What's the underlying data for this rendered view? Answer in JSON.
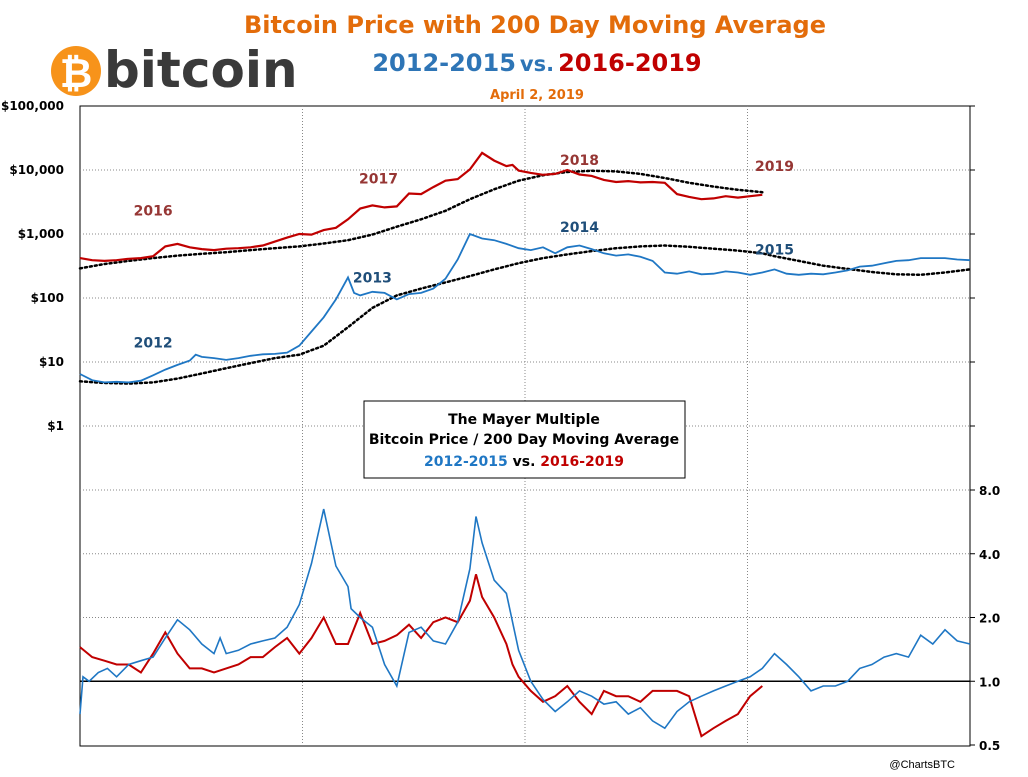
{
  "logo": {
    "symbol": "₿",
    "text": "bitcoin",
    "color": "#f7931a"
  },
  "header": {
    "title": "Bitcoin Price with 200 Day Moving Average",
    "sub_a": "2012-2015",
    "sub_vs": "vs.",
    "sub_b": "2016-2019",
    "date": "April 2, 2019"
  },
  "colors": {
    "series_a": "#1f77c4",
    "series_b": "#c00000",
    "label_a": "#1f4e79",
    "label_b": "#963634",
    "title": "#e36c0a"
  },
  "box": {
    "line1": "The Mayer Multiple",
    "line2": "Bitcoin Price  / 200 Day Moving Average",
    "line3a": "2012-2015",
    "line3vs": " vs. ",
    "line3b": "2016-2019"
  },
  "credit": "@ChartsBTC",
  "chart_data": [
    {
      "type": "line",
      "title": "Bitcoin Price with 200 Day Moving Average",
      "yscale": "log",
      "ylim": [
        1,
        100000
      ],
      "yticks": [
        "$1",
        "$10",
        "$100",
        "$1,000",
        "$10,000",
        "$100,000"
      ],
      "x_range_days": [
        0,
        1461
      ],
      "grid": true,
      "year_labels": {
        "series_a": [
          {
            "label": "2012",
            "x": 120,
            "y": 17
          },
          {
            "label": "2013",
            "x": 480,
            "y": 175
          },
          {
            "label": "2014",
            "x": 820,
            "y": 1080
          },
          {
            "label": "2015",
            "x": 1140,
            "y": 480
          }
        ],
        "series_b": [
          {
            "label": "2016",
            "x": 120,
            "y": 1960
          },
          {
            "label": "2017",
            "x": 490,
            "y": 6100
          },
          {
            "label": "2018",
            "x": 820,
            "y": 12000
          },
          {
            "label": "2019",
            "x": 1140,
            "y": 9600
          }
        ]
      },
      "series": [
        {
          "x": [
            0,
            20,
            40,
            60,
            80,
            100,
            120,
            140,
            160,
            180,
            190,
            200,
            220,
            240,
            260,
            280,
            300,
            320,
            340,
            360,
            380,
            400,
            420,
            440,
            450,
            460,
            480,
            500,
            520,
            540,
            560,
            580,
            600,
            620,
            640,
            660,
            680,
            700,
            720,
            740,
            760,
            780,
            800,
            820,
            840,
            860,
            880,
            900,
            920,
            940,
            960,
            980,
            1000,
            1020,
            1040,
            1060,
            1080,
            1100,
            1120,
            1140,
            1160,
            1180,
            1200,
            1220,
            1240,
            1260,
            1280,
            1300,
            1320,
            1340,
            1360,
            1380,
            1400,
            1420,
            1440,
            1461
          ],
          "y": [
            6.5,
            5.2,
            4.8,
            4.9,
            4.8,
            5.1,
            6.2,
            7.6,
            9.0,
            10.5,
            13,
            12,
            11.5,
            10.8,
            11.5,
            12.5,
            13.2,
            13.4,
            14,
            18,
            30,
            50,
            95,
            210,
            120,
            110,
            125,
            120,
            95,
            115,
            120,
            140,
            200,
            400,
            1000,
            850,
            800,
            700,
            600,
            560,
            620,
            500,
            620,
            660,
            580,
            500,
            460,
            480,
            440,
            380,
            250,
            240,
            260,
            235,
            240,
            260,
            250,
            230,
            250,
            280,
            240,
            230,
            240,
            235,
            250,
            270,
            310,
            320,
            350,
            380,
            390,
            420,
            420,
            420,
            400,
            390
          ]
        },
        {
          "x": [
            0,
            40,
            80,
            120,
            160,
            200,
            240,
            280,
            320,
            360,
            400,
            440,
            480,
            520,
            560,
            600,
            640,
            680,
            720,
            760,
            800,
            840,
            880,
            920,
            960,
            1000,
            1040,
            1080,
            1120,
            1140,
            1180,
            1220,
            1260,
            1300,
            1340,
            1380,
            1420,
            1461
          ],
          "y": [
            5.0,
            4.7,
            4.6,
            4.8,
            5.5,
            6.6,
            8.0,
            9.6,
            11.5,
            13,
            18,
            35,
            70,
            110,
            140,
            175,
            220,
            280,
            350,
            420,
            480,
            540,
            600,
            640,
            660,
            630,
            590,
            550,
            500,
            450,
            380,
            320,
            285,
            255,
            235,
            230,
            250,
            280
          ]
        },
        {
          "x": [
            0,
            20,
            40,
            60,
            80,
            100,
            120,
            140,
            160,
            180,
            200,
            220,
            240,
            260,
            280,
            300,
            320,
            340,
            360,
            380,
            400,
            420,
            440,
            460,
            480,
            500,
            520,
            540,
            560,
            580,
            600,
            620,
            640,
            660,
            680,
            700,
            710,
            720,
            740,
            760,
            780,
            800,
            820,
            840,
            860,
            880,
            900,
            920,
            940,
            960,
            980,
            1000,
            1020,
            1040,
            1060,
            1080,
            1100,
            1120
          ],
          "y": [
            420,
            390,
            380,
            390,
            410,
            420,
            450,
            640,
            700,
            620,
            580,
            560,
            590,
            600,
            620,
            660,
            760,
            880,
            1000,
            980,
            1150,
            1250,
            1700,
            2500,
            2800,
            2600,
            2700,
            4300,
            4200,
            5400,
            6800,
            7200,
            10200,
            18500,
            14000,
            11500,
            12000,
            9800,
            9000,
            8400,
            8700,
            10000,
            8500,
            8100,
            7000,
            6500,
            6700,
            6400,
            6500,
            6300,
            4200,
            3800,
            3500,
            3600,
            3900,
            3700,
            3900,
            4100
          ]
        },
        {
          "x": [
            0,
            40,
            80,
            120,
            160,
            200,
            240,
            280,
            320,
            360,
            400,
            440,
            480,
            520,
            560,
            600,
            640,
            680,
            720,
            760,
            800,
            840,
            880,
            920,
            960,
            1000,
            1040,
            1080,
            1120
          ],
          "y": [
            290,
            340,
            380,
            420,
            460,
            490,
            520,
            560,
            600,
            640,
            710,
            800,
            980,
            1300,
            1700,
            2300,
            3500,
            5000,
            6800,
            8300,
            9300,
            9700,
            9500,
            8700,
            7500,
            6300,
            5500,
            4900,
            4500
          ]
        }
      ]
    },
    {
      "type": "line",
      "title": "The Mayer Multiple",
      "subtitle": "Bitcoin Price  / 200 Day Moving Average",
      "yscale": "log",
      "ylim": [
        0.5,
        8
      ],
      "yticks": [
        "0.5",
        "1.0",
        "2.0",
        "4.0",
        "8.0"
      ],
      "reference_line": 1.0,
      "x_range_days": [
        0,
        1461
      ],
      "grid": true,
      "series": [
        {
          "name": "2012-2015",
          "x": [
            0,
            5,
            15,
            30,
            45,
            60,
            80,
            100,
            120,
            140,
            160,
            180,
            200,
            220,
            230,
            240,
            260,
            280,
            300,
            320,
            340,
            360,
            380,
            400,
            420,
            440,
            445,
            460,
            480,
            500,
            520,
            540,
            560,
            580,
            600,
            620,
            640,
            650,
            660,
            680,
            700,
            720,
            740,
            760,
            780,
            800,
            820,
            840,
            860,
            880,
            900,
            920,
            940,
            960,
            980,
            1000,
            1020,
            1040,
            1060,
            1080,
            1100,
            1120,
            1140,
            1160,
            1180,
            1200,
            1220,
            1240,
            1260,
            1280,
            1300,
            1320,
            1340,
            1360,
            1380,
            1400,
            1420,
            1440,
            1461
          ],
          "y": [
            0.7,
            1.05,
            1.0,
            1.1,
            1.15,
            1.05,
            1.2,
            1.25,
            1.3,
            1.6,
            1.95,
            1.75,
            1.5,
            1.35,
            1.6,
            1.35,
            1.4,
            1.5,
            1.55,
            1.6,
            1.8,
            2.3,
            3.6,
            6.5,
            3.5,
            2.8,
            2.2,
            2.0,
            1.8,
            1.2,
            0.95,
            1.7,
            1.8,
            1.55,
            1.5,
            1.9,
            3.4,
            6.0,
            4.5,
            3.0,
            2.6,
            1.4,
            1.0,
            0.82,
            0.72,
            0.8,
            0.9,
            0.85,
            0.78,
            0.8,
            0.7,
            0.75,
            0.65,
            0.6,
            0.72,
            0.8,
            0.85,
            0.9,
            0.95,
            1.0,
            1.05,
            1.15,
            1.35,
            1.2,
            1.05,
            0.9,
            0.95,
            0.95,
            1.0,
            1.15,
            1.2,
            1.3,
            1.35,
            1.3,
            1.65,
            1.5,
            1.75,
            1.55,
            1.5
          ]
        },
        {
          "name": "2016-2019",
          "x": [
            0,
            20,
            40,
            60,
            80,
            100,
            120,
            140,
            160,
            180,
            200,
            220,
            240,
            260,
            280,
            300,
            320,
            340,
            360,
            380,
            400,
            420,
            440,
            460,
            480,
            500,
            520,
            540,
            560,
            580,
            600,
            620,
            640,
            650,
            660,
            680,
            700,
            710,
            720,
            740,
            760,
            780,
            800,
            820,
            840,
            860,
            880,
            900,
            920,
            940,
            960,
            980,
            1000,
            1020,
            1040,
            1060,
            1080,
            1100,
            1120
          ],
          "y": [
            1.45,
            1.3,
            1.25,
            1.2,
            1.2,
            1.1,
            1.35,
            1.7,
            1.35,
            1.15,
            1.15,
            1.1,
            1.15,
            1.2,
            1.3,
            1.3,
            1.45,
            1.6,
            1.35,
            1.6,
            2.0,
            1.5,
            1.5,
            2.1,
            1.5,
            1.55,
            1.65,
            1.85,
            1.6,
            1.9,
            2.0,
            1.9,
            2.4,
            3.2,
            2.5,
            2.0,
            1.5,
            1.2,
            1.05,
            0.9,
            0.8,
            0.85,
            0.95,
            0.8,
            0.7,
            0.9,
            0.85,
            0.85,
            0.8,
            0.9,
            0.9,
            0.9,
            0.85,
            0.55,
            0.6,
            0.65,
            0.7,
            0.85,
            0.95
          ]
        }
      ]
    }
  ]
}
